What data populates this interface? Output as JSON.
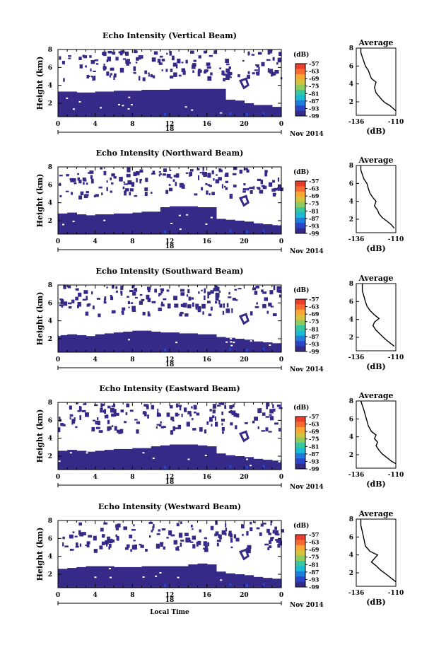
{
  "figure": {
    "xlabel": "Local Time",
    "date_label": "Nov 2014",
    "day_label": "18",
    "colorbar_unit": "(dB)",
    "avg_xlabel": "(dB)",
    "colormap": [
      "#352a87",
      "#2a45c8",
      "#1f7ddb",
      "#1bbbd4",
      "#37c8a0",
      "#8fcc5f",
      "#d6c23d",
      "#f9a635",
      "#f76a32",
      "#ea3d2a"
    ]
  },
  "chart_data": [
    {
      "type": "heatmap",
      "title": "Echo Intensity (Vertical Beam)",
      "ylabel": "Height (km)",
      "x_ticks": [
        "0",
        "4",
        "8",
        "12",
        "16",
        "20",
        "0"
      ],
      "y_ticks": [
        "2",
        "4",
        "6",
        "8"
      ],
      "xlim": [
        0,
        24
      ],
      "ylim": [
        0.5,
        8
      ],
      "colorbar_ticks": [
        "-57",
        "-63",
        "-69",
        "-75",
        "-81",
        "-87",
        "-93",
        "-99"
      ],
      "cloud_top_km": [
        3.3,
        3.3,
        3.2,
        3.2,
        3.3,
        3.3,
        3.4,
        3.4,
        3.4,
        3.5,
        3.5,
        3.5,
        3.6,
        3.6,
        3.6,
        3.6,
        3.6,
        3.6,
        2.4,
        2.3,
        2.0,
        1.8,
        1.8,
        1.6
      ]
    },
    {
      "type": "line",
      "title": "Average",
      "xlabel": "(dB)",
      "x_ticks": [
        "-136",
        "-110"
      ],
      "y_ticks": [
        "2",
        "4",
        "6",
        "8"
      ],
      "xlim": [
        -136,
        -110
      ],
      "ylim": [
        0.5,
        8
      ],
      "x": [
        -110,
        -112,
        -114,
        -117,
        -119,
        -121,
        -123,
        -124,
        -123,
        -126,
        -127,
        -128,
        -130,
        -131,
        -132,
        -133,
        -133
      ],
      "y": [
        1.0,
        1.3,
        1.6,
        1.9,
        2.2,
        2.6,
        3.0,
        3.6,
        4.2,
        4.6,
        5.0,
        5.5,
        6.0,
        6.5,
        7.0,
        7.5,
        8.0
      ]
    },
    {
      "type": "heatmap",
      "title": "Echo Intensity (Northward Beam)",
      "ylabel": "Height (km)",
      "x_ticks": [
        "0",
        "4",
        "8",
        "12",
        "16",
        "20",
        "0"
      ],
      "y_ticks": [
        "2",
        "4",
        "6",
        "8"
      ],
      "xlim": [
        0,
        24
      ],
      "ylim": [
        0.5,
        8
      ],
      "colorbar_ticks": [
        "-57",
        "-63",
        "-69",
        "-75",
        "-81",
        "-87",
        "-93",
        "-99"
      ],
      "cloud_top_km": [
        2.8,
        2.9,
        2.7,
        2.6,
        2.7,
        2.7,
        2.8,
        2.8,
        2.9,
        3.0,
        3.0,
        3.5,
        3.6,
        3.6,
        3.6,
        3.5,
        3.5,
        2.2,
        2.1,
        2.0,
        1.9,
        1.7,
        1.6,
        1.5
      ]
    },
    {
      "type": "line",
      "title": "Average",
      "xlabel": "(dB)",
      "x_ticks": [
        "-136",
        "-110"
      ],
      "y_ticks": [
        "2",
        "4",
        "6",
        "8"
      ],
      "xlim": [
        -136,
        -110
      ],
      "ylim": [
        0.5,
        8
      ],
      "x": [
        -111,
        -113,
        -116,
        -119,
        -121,
        -122,
        -124,
        -123,
        -125,
        -127,
        -128,
        -129,
        -131,
        -132,
        -133,
        -133
      ],
      "y": [
        1.0,
        1.4,
        1.8,
        2.2,
        2.6,
        3.0,
        3.5,
        4.0,
        4.4,
        4.9,
        5.4,
        6.0,
        6.5,
        7.0,
        7.5,
        8.0
      ]
    },
    {
      "type": "heatmap",
      "title": "Echo Intensity (Southward Beam)",
      "ylabel": "Height (km)",
      "x_ticks": [
        "0",
        "4",
        "8",
        "12",
        "16",
        "20",
        "0"
      ],
      "y_ticks": [
        "2",
        "4",
        "6",
        "8"
      ],
      "xlim": [
        0,
        24
      ],
      "ylim": [
        0.5,
        8
      ],
      "colorbar_ticks": [
        "-57",
        "-63",
        "-69",
        "-75",
        "-81",
        "-87",
        "-93",
        "-99"
      ],
      "cloud_top_km": [
        2.4,
        2.5,
        2.4,
        2.3,
        2.5,
        2.6,
        2.7,
        2.8,
        2.9,
        2.9,
        2.8,
        2.7,
        2.7,
        2.6,
        2.6,
        2.5,
        2.5,
        2.2,
        2.1,
        2.0,
        1.9,
        1.7,
        1.6,
        1.5
      ]
    },
    {
      "type": "line",
      "title": "Average",
      "xlabel": "(dB)",
      "x_ticks": [
        "-136",
        "-110"
      ],
      "y_ticks": [
        "2",
        "4",
        "6",
        "8"
      ],
      "xlim": [
        -136,
        -110
      ],
      "ylim": [
        0.5,
        8
      ],
      "x": [
        -111,
        -114,
        -117,
        -120,
        -123,
        -125,
        -124,
        -121,
        -124,
        -127,
        -129,
        -130,
        -131,
        -132,
        -132
      ],
      "y": [
        1.0,
        1.4,
        1.8,
        2.3,
        2.8,
        3.3,
        3.7,
        4.1,
        4.5,
        5.0,
        5.5,
        6.0,
        6.6,
        7.2,
        8.0
      ]
    },
    {
      "type": "heatmap",
      "title": "Echo Intensity (Eastward Beam)",
      "ylabel": "Height (km)",
      "x_ticks": [
        "0",
        "4",
        "8",
        "12",
        "16",
        "20",
        "0"
      ],
      "y_ticks": [
        "2",
        "4",
        "6",
        "8"
      ],
      "xlim": [
        0,
        24
      ],
      "ylim": [
        0.5,
        8
      ],
      "colorbar_ticks": [
        "-57",
        "-63",
        "-69",
        "-75",
        "-81",
        "-87",
        "-93",
        "-99"
      ],
      "cloud_top_km": [
        2.6,
        2.7,
        2.6,
        2.5,
        2.6,
        2.7,
        2.8,
        2.8,
        2.9,
        2.9,
        3.1,
        3.2,
        3.3,
        3.3,
        3.3,
        3.2,
        3.1,
        2.3,
        2.1,
        2.0,
        1.9,
        1.7,
        1.6,
        1.5
      ]
    },
    {
      "type": "line",
      "title": "Average",
      "xlabel": "(dB)",
      "x_ticks": [
        "-136",
        "-110"
      ],
      "y_ticks": [
        "2",
        "4",
        "6",
        "8"
      ],
      "xlim": [
        -136,
        -110
      ],
      "ylim": [
        0.5,
        8
      ],
      "x": [
        -110,
        -113,
        -116,
        -119,
        -121,
        -123,
        -122,
        -124,
        -123,
        -126,
        -128,
        -129,
        -130,
        -131,
        -132,
        -133
      ],
      "y": [
        1.0,
        1.3,
        1.7,
        2.1,
        2.5,
        3.0,
        3.4,
        3.8,
        4.2,
        4.6,
        5.2,
        5.8,
        6.4,
        7.0,
        7.5,
        8.0
      ]
    },
    {
      "type": "heatmap",
      "title": "Echo Intensity (Westward Beam)",
      "ylabel": "Height (km)",
      "x_ticks": [
        "0",
        "4",
        "8",
        "12",
        "16",
        "20",
        "0"
      ],
      "y_ticks": [
        "2",
        "4",
        "6",
        "8"
      ],
      "xlim": [
        0,
        24
      ],
      "ylim": [
        0.5,
        8
      ],
      "colorbar_ticks": [
        "-57",
        "-63",
        "-69",
        "-75",
        "-81",
        "-87",
        "-93",
        "-99"
      ],
      "cloud_top_km": [
        2.6,
        2.7,
        2.8,
        2.9,
        2.9,
        2.9,
        2.8,
        2.8,
        2.8,
        2.9,
        2.9,
        2.9,
        2.9,
        2.9,
        3.1,
        3.2,
        3.1,
        2.3,
        2.1,
        2.0,
        1.9,
        1.7,
        1.6,
        1.5
      ]
    },
    {
      "type": "line",
      "title": "Average",
      "xlabel": "(dB)",
      "x_ticks": [
        "-136",
        "-110"
      ],
      "y_ticks": [
        "2",
        "4",
        "6",
        "8"
      ],
      "xlim": [
        -136,
        -110
      ],
      "ylim": [
        0.5,
        8
      ],
      "x": [
        -110,
        -113,
        -116,
        -120,
        -123,
        -126,
        -124,
        -122,
        -127,
        -130,
        -131,
        -132,
        -133,
        -133
      ],
      "y": [
        1.0,
        1.4,
        1.8,
        2.3,
        2.8,
        3.2,
        3.6,
        4.0,
        4.4,
        5.0,
        5.8,
        6.6,
        7.3,
        8.0
      ]
    }
  ]
}
